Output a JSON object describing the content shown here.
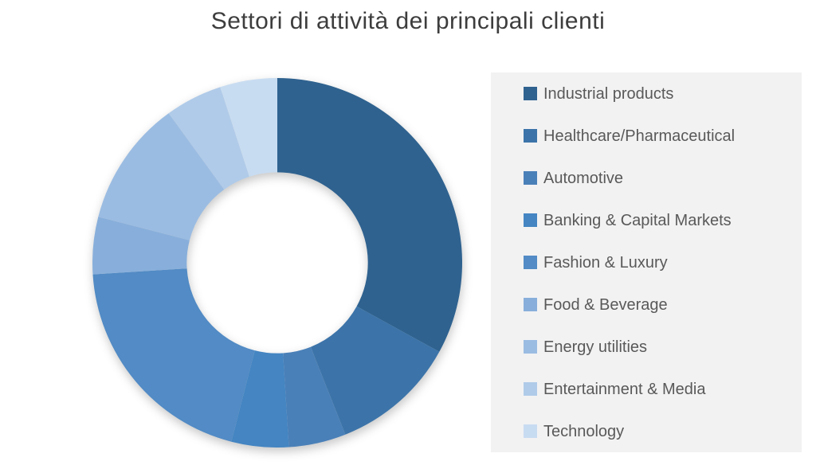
{
  "title": "Settori di attività dei principali clienti",
  "chart_data": {
    "type": "pie",
    "subtype": "donut",
    "title": "Settori di attività dei principali clienti",
    "legend_position": "right",
    "start_angle_deg": 0,
    "direction": "clockwise",
    "inner_radius_ratio": 0.49,
    "unit": "percent (estimated from arc angles)",
    "categories": [
      "Industrial products",
      "Healthcare/Pharmaceutical",
      "Automotive",
      "Banking & Capital Markets",
      "Fashion & Luxury",
      "Food & Beverage",
      "Energy utilities",
      "Entertainment & Media",
      "Technology"
    ],
    "values": [
      33,
      11,
      5,
      5,
      20,
      5,
      11,
      5,
      5
    ],
    "colors": [
      "#2f628f",
      "#3c74a9",
      "#4a80b8",
      "#4485c2",
      "#528bc5",
      "#88afdb",
      "#9bbce2",
      "#b0cbe9",
      "#c8dcf1"
    ]
  },
  "legend": {
    "background": "#f2f2f3"
  },
  "style": {
    "title_color": "#3d3d3d",
    "legend_text_color": "#595959"
  }
}
